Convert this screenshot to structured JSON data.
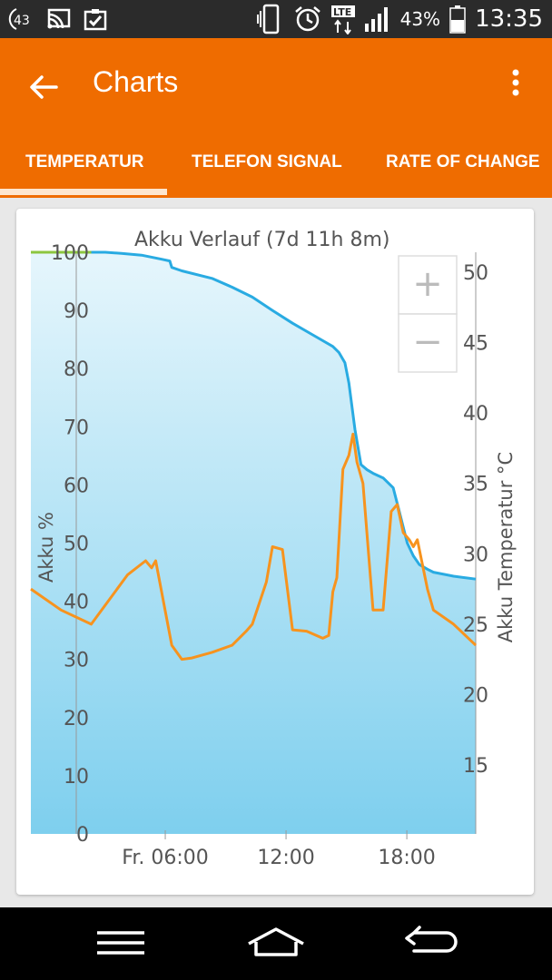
{
  "status_bar": {
    "notification_count": "43",
    "battery_percent": "43%",
    "time": "13:35",
    "network": "LTE",
    "icons": [
      "notification-count-icon",
      "cast-icon",
      "clipboard-check-icon",
      "vibrate-icon",
      "alarm-icon",
      "lte-icon",
      "signal-icon",
      "battery-icon"
    ]
  },
  "app_bar": {
    "title": "Charts",
    "back_icon": "arrow-back-icon",
    "menu_icon": "more-vert-icon",
    "color": "#ef6c00"
  },
  "tabs": [
    {
      "label": "TEMPERATUR",
      "selected": true
    },
    {
      "label": "TELEFON SIGNAL",
      "selected": false
    },
    {
      "label": "RATE OF CHANGE",
      "selected": false
    }
  ],
  "zoom": {
    "in_label": "+",
    "out_label": "−"
  },
  "chart_data": {
    "type": "line",
    "title": "Akku Verlauf (7d 11h 8m)",
    "ylabel": "Akku %",
    "y2label": "Akku Temperatur °C",
    "ylim": [
      0,
      100
    ],
    "y2lim": [
      15,
      51
    ],
    "x_ticks": [
      {
        "label": "Fr. 06:00",
        "hour": 6
      },
      {
        "label": "12:00",
        "hour": 12
      },
      {
        "label": "18:00",
        "hour": 18
      }
    ],
    "y_ticks": [
      0,
      10,
      20,
      30,
      40,
      50,
      60,
      70,
      80,
      90,
      100
    ],
    "y2_ticks": [
      15,
      20,
      25,
      30,
      35,
      40,
      45,
      50
    ],
    "grid": false,
    "colors": {
      "battery": "#29abe2",
      "temperature": "#f7931e",
      "charging": "#8cc63f",
      "fill_top": "#e6f6fc",
      "fill_bottom": "#7ecfee"
    },
    "series": [
      {
        "axis": "left",
        "color": "#29abe2",
        "x": [
          0,
          3,
          3.7,
          4.5,
          5.5,
          6.5,
          6.9,
          7,
          7.5,
          9,
          10,
          11,
          12,
          13,
          14,
          15,
          15.3,
          15.6,
          15.8,
          16.1,
          16.4,
          16.7,
          17,
          17.5,
          18,
          18.3,
          18.7,
          19,
          19.3,
          19.7,
          20,
          21,
          22.1
        ],
        "y": [
          100,
          100,
          100,
          99.8,
          99.5,
          98.8,
          98.5,
          97.4,
          96.8,
          95.5,
          94,
          92.3,
          90,
          87.8,
          85.8,
          83.8,
          82.8,
          81,
          77.5,
          69.5,
          63.5,
          62.6,
          62,
          61.2,
          59.5,
          55.5,
          50,
          47.8,
          46.3,
          45.5,
          45,
          44.3,
          43.8
        ]
      },
      {
        "axis": "right",
        "color": "#f7931e",
        "x": [
          0,
          1.5,
          3,
          4.8,
          5.7,
          6,
          6.2,
          7,
          7.5,
          8,
          9,
          10,
          10.7,
          11,
          11.7,
          12,
          12.5,
          13,
          13.7,
          14.5,
          14.8,
          15,
          15.2,
          15.5,
          15.8,
          16,
          16.2,
          16.5,
          17,
          17.5,
          17.9,
          18.2,
          18.5,
          18.8,
          19,
          19.2,
          19.7,
          20,
          21,
          22.1
        ],
        "y": [
          27.5,
          26,
          25,
          28.5,
          29.5,
          29,
          29.5,
          23.5,
          22.5,
          22.6,
          23,
          23.5,
          24.5,
          25,
          28,
          30.5,
          30.3,
          24.6,
          24.5,
          24,
          24.2,
          27.3,
          28.3,
          36,
          37,
          38.5,
          36.5,
          35,
          26,
          26,
          33,
          33.5,
          31.5,
          31,
          30.5,
          31,
          27.5,
          26,
          25,
          23.5
        ]
      },
      {
        "axis": "left",
        "color": "#8cc63f",
        "x": [
          0,
          3
        ],
        "y": [
          100,
          100
        ]
      }
    ]
  }
}
